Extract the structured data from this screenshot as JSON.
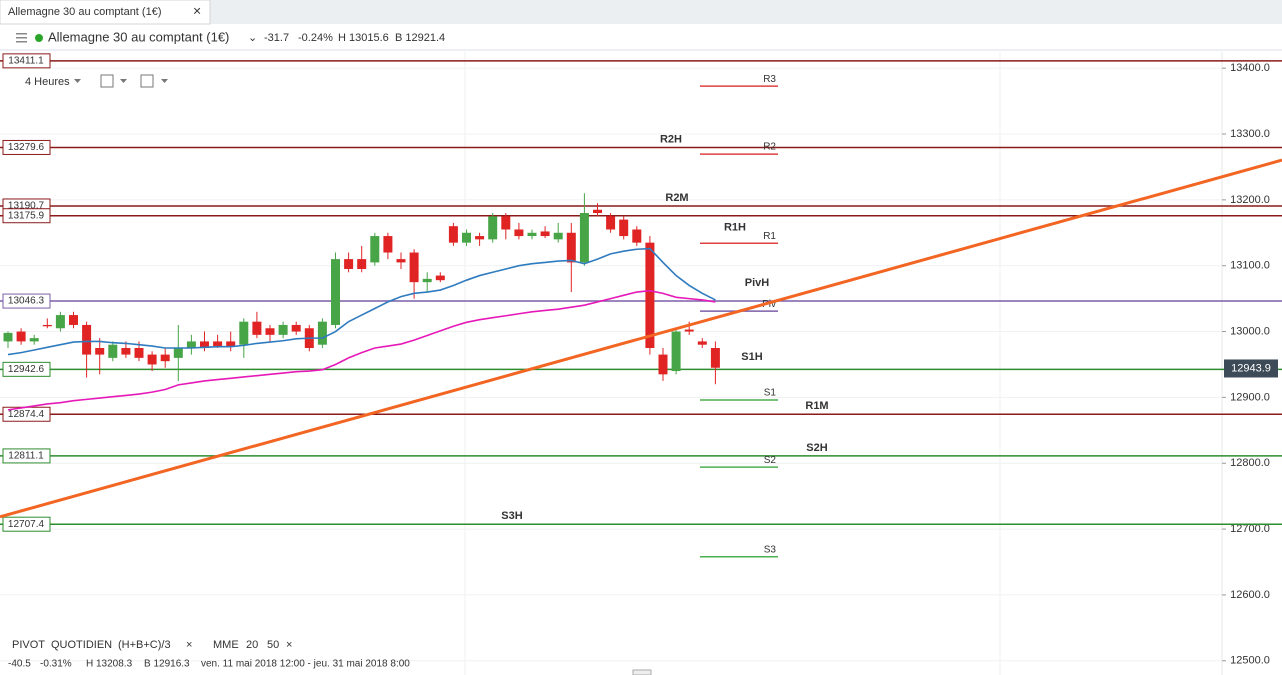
{
  "ui": {
    "tab_title": "Allemagne 30 au comptant (1€)",
    "instrument": "Allemagne 30 au comptant (1€)",
    "change": "-31.7",
    "change_pct": "-0.24%",
    "high": "H 13015.6",
    "low": "B 12921.4",
    "timeframe": "4 Heures",
    "footer": {
      "indicator": "PIVOT",
      "period": "QUOTIDIEN",
      "formula": "(H+B+C)/3",
      "ma_label": "MME",
      "change": "-40.5",
      "change_pct": "-0.31%",
      "high": "H 13208.3",
      "low": "B 12916.3",
      "range": "ven. 11 mai 2018 12:00 - jeu. 31 mai 2018 8:00"
    }
  },
  "chart_data": {
    "type": "candlestick",
    "up_color": "#47a447",
    "down_color": "#e02424",
    "open": [
      12985,
      13000,
      12985,
      13010,
      13005,
      13025,
      13010,
      12975,
      12960,
      12975,
      12975,
      12965,
      12965,
      12960,
      12975,
      12985,
      12985,
      12985,
      12980,
      13015,
      13005,
      12995,
      13010,
      13005,
      12980,
      13010,
      13110,
      13110,
      13105,
      13145,
      13110,
      13120,
      13075,
      13085,
      13160,
      13135,
      13145,
      13140,
      13175,
      13155,
      13145,
      13152,
      13140,
      13150,
      13105,
      13185,
      13175,
      13170,
      13155,
      13135,
      12965,
      12940,
      13003,
      12985,
      12975
    ],
    "high": [
      13000,
      13005,
      12995,
      13020,
      13030,
      13030,
      13015,
      12990,
      12985,
      12985,
      12985,
      12970,
      12975,
      13010,
      12995,
      13000,
      12995,
      13000,
      13020,
      13030,
      13010,
      13015,
      13015,
      13010,
      13020,
      13120,
      13120,
      13130,
      13150,
      13150,
      13120,
      13125,
      13090,
      13090,
      13165,
      13155,
      13150,
      13180,
      13180,
      13165,
      13155,
      13160,
      13165,
      13165,
      13210,
      13195,
      13180,
      13175,
      13160,
      13145,
      12975,
      13005,
      13015,
      12990,
      12985
    ],
    "low": [
      12975,
      12980,
      12980,
      13005,
      13000,
      13005,
      12930,
      12935,
      12955,
      12960,
      12955,
      12940,
      12945,
      12925,
      12965,
      12970,
      12975,
      12970,
      12960,
      12990,
      12985,
      12990,
      12995,
      12970,
      12975,
      13005,
      13090,
      13090,
      13100,
      13110,
      13095,
      13050,
      13060,
      13075,
      13130,
      13130,
      13130,
      13135,
      13140,
      13140,
      13140,
      13142,
      13135,
      13060,
      13100,
      13175,
      13150,
      13140,
      13130,
      12965,
      12925,
      12935,
      12995,
      12975,
      12920
    ],
    "close": [
      12998,
      12985,
      12990,
      13008,
      13025,
      13010,
      12965,
      12965,
      12980,
      12965,
      12960,
      12950,
      12955,
      12975,
      12985,
      12975,
      12978,
      12978,
      13015,
      12995,
      12995,
      13010,
      13000,
      12975,
      13015,
      13110,
      13095,
      13095,
      13145,
      13120,
      13105,
      13075,
      13080,
      13078,
      13135,
      13150,
      13140,
      13175,
      13155,
      13145,
      13150,
      13145,
      13150,
      13105,
      13180,
      13180,
      13155,
      13145,
      13135,
      12975,
      12935,
      13000,
      13000,
      12980,
      12945
    ],
    "series": [
      {
        "name": "20",
        "color": "#2f7bbf",
        "values": [
          12965,
          12968,
          12972,
          12976,
          12980,
          12984,
          12985,
          12985,
          12983,
          12982,
          12980,
          12978,
          12975,
          12975,
          12975,
          12976,
          12977,
          12977,
          12979,
          12982,
          12984,
          12986,
          12989,
          12990,
          12990,
          13000,
          13015,
          13025,
          13035,
          13045,
          13053,
          13058,
          13060,
          13063,
          13070,
          13078,
          13085,
          13090,
          13095,
          13100,
          13103,
          13105,
          13107,
          13108,
          13103,
          13110,
          13118,
          13122,
          13125,
          13126,
          13105,
          13085,
          13070,
          13058,
          13048
        ]
      },
      {
        "name": "50",
        "color": "#e619b8",
        "values": [
          12881,
          12884,
          12887,
          12890,
          12892,
          12895,
          12897,
          12899,
          12901,
          12903,
          12905,
          12908,
          12912,
          12919,
          12922,
          12925,
          12927,
          12929,
          12931,
          12933,
          12935,
          12937,
          12939,
          12940,
          12942,
          12950,
          12960,
          12968,
          12975,
          12978,
          12981,
          12987,
          12994,
          13001,
          13008,
          13014,
          13018,
          13021,
          13024,
          13027,
          13030,
          13032,
          13034,
          13037,
          13040,
          13045,
          13050,
          13055,
          13060,
          13062,
          13058,
          13052,
          13050,
          13048,
          13045
        ]
      }
    ],
    "hlines": [
      {
        "value": 13411.1,
        "color": "#8b1a1a"
      },
      {
        "value": 13279.6,
        "color": "#8b1a1a",
        "tag": "R2H"
      },
      {
        "value": 13190.7,
        "color": "#8b1a1a",
        "tag": "R2M"
      },
      {
        "value": 13175.9,
        "color": "#8b1a1a",
        "tag": "R1H"
      },
      {
        "value": 13046.3,
        "color": "#7b5ea7",
        "tag": "PivH"
      },
      {
        "value": 12942.6,
        "color": "#2e8b2e",
        "tag": "S1H"
      },
      {
        "value": 12874.4,
        "color": "#8b1a1a",
        "tag": "R1M"
      },
      {
        "value": 12811.1,
        "color": "#2e8b2e",
        "tag": "S2H"
      },
      {
        "value": 12707.4,
        "color": "#2e8b2e",
        "tag": "S3H"
      }
    ],
    "pivots": [
      {
        "label": "R3",
        "value": 13372.7,
        "color": "#e04040"
      },
      {
        "label": "R2",
        "value": 13269.5,
        "color": "#e04040"
      },
      {
        "label": "R1",
        "value": 13134,
        "color": "#e04040"
      },
      {
        "label": "Piv",
        "value": 13031,
        "color": "#7b5ea7"
      },
      {
        "label": "S1",
        "value": 12896,
        "color": "#4caf50"
      },
      {
        "label": "S2",
        "value": 12794,
        "color": "#4caf50"
      },
      {
        "label": "S3",
        "value": 12658,
        "color": "#4caf50"
      }
    ],
    "trendline": {
      "values": [
        12718.6,
        13260.4
      ],
      "color": "#f26522"
    },
    "last_price": 12943.9,
    "ylim": [
      12489,
      13420
    ],
    "yticks": [
      {
        "value": 12500,
        "label": "12500.0"
      },
      {
        "value": 12600,
        "label": "12600.0"
      },
      {
        "value": 12700,
        "label": "12700.0"
      },
      {
        "value": 12800,
        "label": "12800.0"
      },
      {
        "value": 12900,
        "label": "12900.0"
      },
      {
        "value": 13000,
        "label": "13000.0"
      },
      {
        "value": 13100,
        "label": "13100.0"
      },
      {
        "value": 13200,
        "label": "13200.0"
      },
      {
        "value": 13300,
        "label": "13300.0"
      },
      {
        "value": 13400,
        "label": "13400.0"
      }
    ],
    "grid": true
  }
}
